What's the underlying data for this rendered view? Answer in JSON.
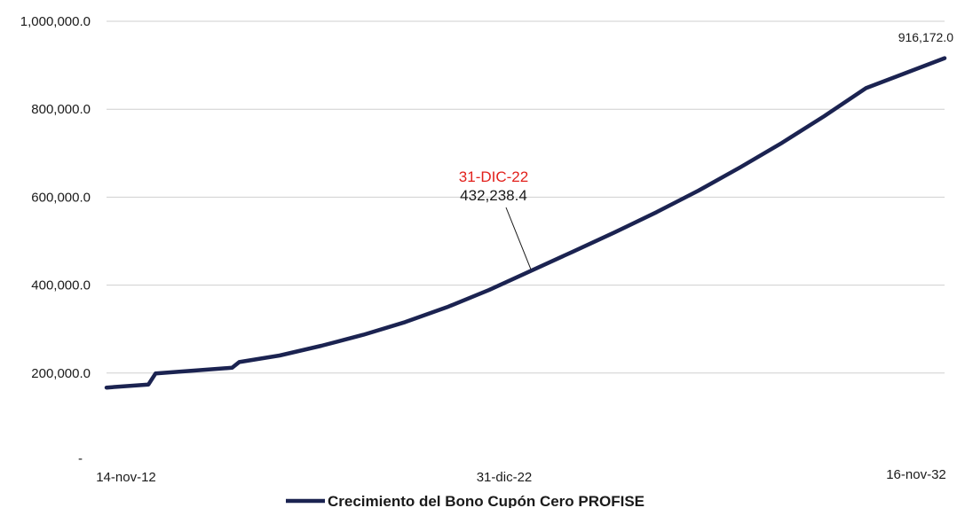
{
  "chart_data": {
    "type": "line",
    "x_labels": [
      "14-nov-12",
      "31-dic-22",
      "16-nov-32"
    ],
    "x_range": [
      "14-nov-12",
      "16-nov-32"
    ],
    "ylim": [
      0,
      1000000
    ],
    "y_ticks": [
      {
        "value": 0,
        "label": "-"
      },
      {
        "value": 200000,
        "label": "200,000.0"
      },
      {
        "value": 400000,
        "label": "400,000.0"
      },
      {
        "value": 600000,
        "label": "600,000.0"
      },
      {
        "value": 800000,
        "label": "800,000.0"
      },
      {
        "value": 1000000,
        "label": "1,000,000.0"
      }
    ],
    "grid": true,
    "legend_position": "bottom",
    "series": [
      {
        "name": "Crecimiento del Bono Cupón Cero PROFISE",
        "color": "#1b2351",
        "points": [
          {
            "x": "2012-11-14",
            "y": 167000
          },
          {
            "x": "2013-11-14",
            "y": 174000
          },
          {
            "x": "2014-01-15",
            "y": 199000
          },
          {
            "x": "2015-11-14",
            "y": 212000
          },
          {
            "x": "2016-01-15",
            "y": 225000
          },
          {
            "x": "2017-01-01",
            "y": 240000
          },
          {
            "x": "2018-01-01",
            "y": 262000
          },
          {
            "x": "2019-01-01",
            "y": 287000
          },
          {
            "x": "2020-01-01",
            "y": 316000
          },
          {
            "x": "2021-01-01",
            "y": 350000
          },
          {
            "x": "2022-01-01",
            "y": 389000
          },
          {
            "x": "2022-12-31",
            "y": 432238.4
          },
          {
            "x": "2024-01-01",
            "y": 476000
          },
          {
            "x": "2025-01-01",
            "y": 520000
          },
          {
            "x": "2026-01-01",
            "y": 566000
          },
          {
            "x": "2027-01-01",
            "y": 615000
          },
          {
            "x": "2028-01-01",
            "y": 668000
          },
          {
            "x": "2029-01-01",
            "y": 724000
          },
          {
            "x": "2030-01-01",
            "y": 784000
          },
          {
            "x": "2031-01-01",
            "y": 848000
          },
          {
            "x": "2032-11-16",
            "y": 916172.0
          }
        ]
      }
    ],
    "annotations": [
      {
        "date": "31-DIC-22",
        "value": "432,238.4",
        "x": "2022-12-31",
        "y": 432238.4
      }
    ],
    "end_label": {
      "text": "916,172.0",
      "x": "2032-11-16",
      "y": 916172.0
    }
  }
}
